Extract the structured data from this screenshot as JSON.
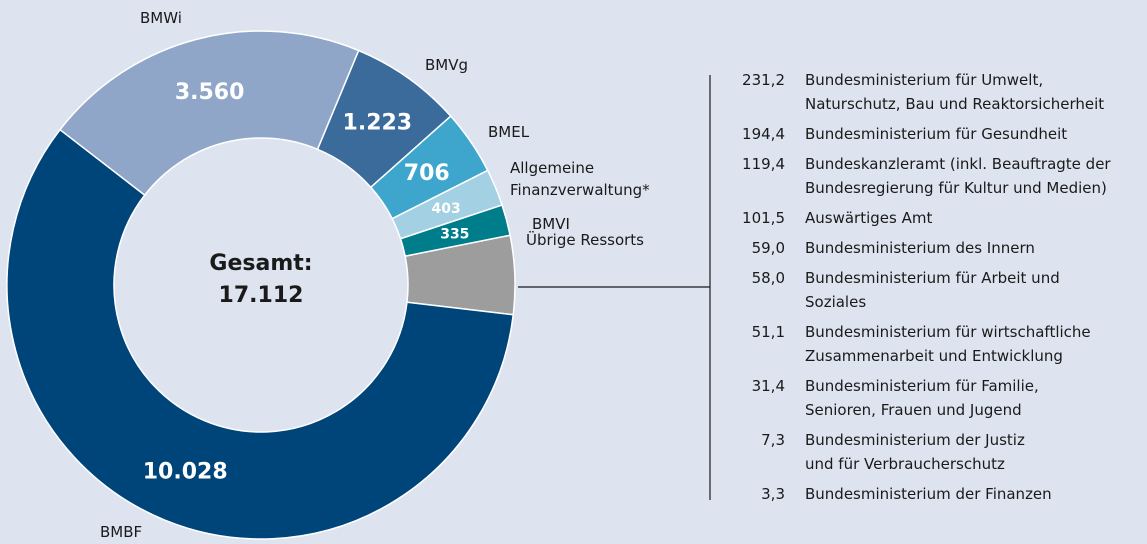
{
  "chart_data": {
    "type": "donut",
    "categories": [
      "BMVg",
      "BMEL",
      "Allgemeine Finanzverwaltung*",
      "BMVI",
      "Übrige Ressorts",
      "BMBF",
      "BMWi"
    ],
    "values": [
      1223,
      706,
      403,
      335,
      856.6,
      10028,
      3560
    ],
    "value_labels": [
      "1.223",
      "706",
      "403",
      "335",
      null,
      "10.028",
      "3.560"
    ],
    "colors": [
      "#3a6b9b",
      "#3ea6cc",
      "#a3d0e2",
      "#007d8a",
      "#9d9d9d",
      "#00457a",
      "#8fa6c9"
    ],
    "center_label": "Gesamt:",
    "total": {
      "value": 17112,
      "label": "17.112"
    },
    "breakdown": [
      {
        "value": 231.2,
        "label": "231,2",
        "name": [
          "Bundesministerium für Umwelt,",
          "Naturschutz, Bau und Reaktorsicherheit"
        ]
      },
      {
        "value": 194.4,
        "label": "194,4",
        "name": [
          "Bundesministerium für Gesundheit"
        ]
      },
      {
        "value": 119.4,
        "label": "119,4",
        "name": [
          "Bundeskanzleramt (inkl. Beauftragte der",
          "Bundesregierung für Kultur und Medien)"
        ]
      },
      {
        "value": 101.5,
        "label": "101,5",
        "name": [
          "Auswärtiges Amt"
        ]
      },
      {
        "value": 59.0,
        "label": "59,0",
        "name": [
          "Bundesministerium des Innern"
        ]
      },
      {
        "value": 58.0,
        "label": "58,0",
        "name": [
          "Bundesministerium für Arbeit und",
          "Soziales"
        ]
      },
      {
        "value": 51.1,
        "label": "51,1",
        "name": [
          "Bundesministerium für wirtschaftliche",
          "Zusammenarbeit und Entwicklung"
        ]
      },
      {
        "value": 31.4,
        "label": "31,4",
        "name": [
          "Bundesministerium für Familie,",
          "Senioren, Frauen und Jugend"
        ]
      },
      {
        "value": 7.3,
        "label": "7,3",
        "name": [
          "Bundesministerium der Justiz",
          "und für Verbraucherschutz"
        ]
      },
      {
        "value": 3.3,
        "label": "3,3",
        "name": [
          "Bundesministerium der Finanzen"
        ]
      }
    ]
  }
}
